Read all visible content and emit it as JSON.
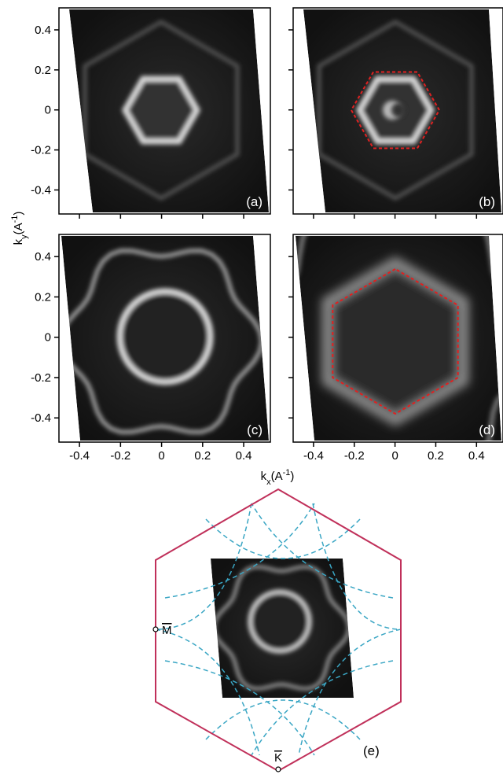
{
  "yticks": [
    0.4,
    0.2,
    0,
    -0.2,
    -0.4
  ],
  "xticks": [
    -0.4,
    -0.2,
    0,
    0.2,
    0.4
  ],
  "xlim": [
    -0.5,
    0.53
  ],
  "ylim": [
    -0.52,
    0.51
  ],
  "ylabel": {
    "base": "k",
    "sub": "y",
    "open": "(A",
    "sup": "-1",
    "close": ")"
  },
  "xlabel": {
    "base": "k",
    "sub": "x",
    "open": "(A",
    "sup": "-1",
    "close": ")"
  },
  "panels": [
    {
      "label": "(a)"
    },
    {
      "label": "(b)"
    },
    {
      "label": "(c)"
    },
    {
      "label": "(d)"
    },
    {
      "label": "(e)"
    }
  ],
  "points": {
    "M": "M",
    "K": "K"
  }
}
